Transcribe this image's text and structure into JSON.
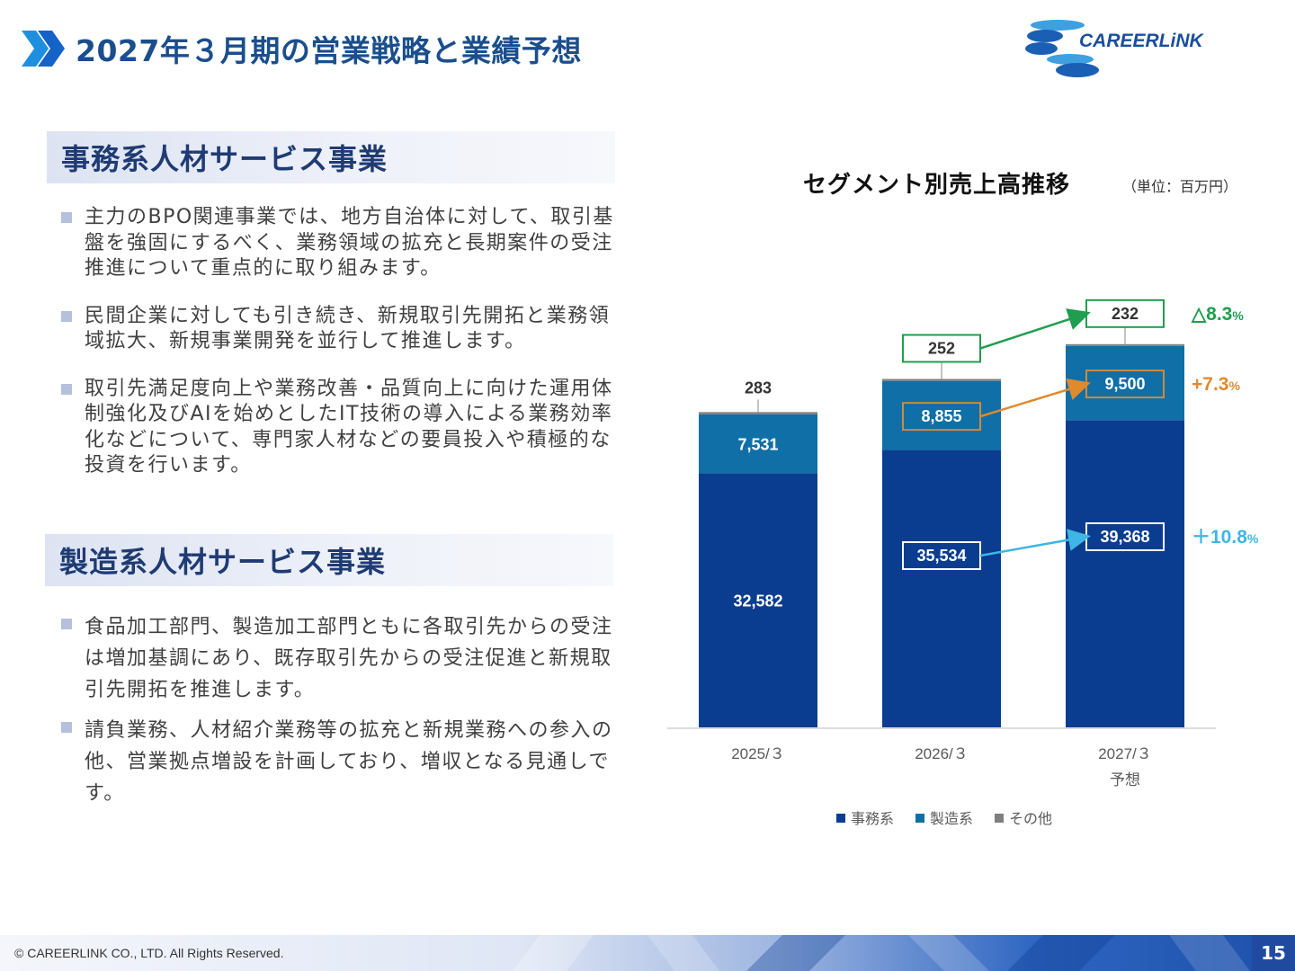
{
  "header": {
    "title": "2027年３月期の営業戦略と業績予想",
    "logo_text": "CAREERLiNK"
  },
  "section1": {
    "heading": "事務系人材サービス事業",
    "bullets": [
      "主力のBPO関連事業では、地方自治体に対して、取引基盤を強固にするべく、業務領域の拡充と長期案件の受注推進について重点的に取り組みます。",
      "民間企業に対しても引き続き、新規取引先開拓と業務領域拡大、新規事業開発を並行して推進します。",
      "取引先満足度向上や業務改善・品質向上に向けた運用体制強化及びAIを始めとしたIT技術の導入による業務効率化などについて、専門家人材などの要員投入や積極的な投資を行います。"
    ]
  },
  "section2": {
    "heading": "製造系人材サービス事業",
    "bullets": [
      "食品加工部門、製造加工部門ともに各取引先からの受注は増加基調にあり、既存取引先からの受注促進と新規取引先開拓を推進します。",
      "請負業務、人材紹介業務等の拡充と新規業務への参入の他、営業拠点増設を計画しており、増収となる見通しです。"
    ]
  },
  "chart_data": {
    "type": "bar",
    "stacked": true,
    "title": "セグメント別売上高推移",
    "unit": "（単位：百万円）",
    "categories": [
      "2025/３",
      "2026/３",
      "2027/３"
    ],
    "category_sublabels": [
      "",
      "",
      "予想"
    ],
    "series": [
      {
        "name": "事務系",
        "values": [
          32582,
          35534,
          39368
        ],
        "color": "#0a3d8f"
      },
      {
        "name": "製造系",
        "values": [
          7531,
          8855,
          9500
        ],
        "color": "#0f6fa6"
      },
      {
        "name": "その他",
        "values": [
          283,
          252,
          232
        ],
        "color": "#7f7f7f"
      }
    ],
    "labels": [
      [
        "32,582",
        "35,534",
        "39,368"
      ],
      [
        "7,531",
        "8,855",
        "9,500"
      ],
      [
        "283",
        "252",
        "232"
      ]
    ],
    "growth": [
      {
        "series": "その他",
        "text": "△8.3",
        "suffix": "%",
        "color": "#1e9e4e"
      },
      {
        "series": "製造系",
        "text": "+7.3",
        "suffix": "%",
        "color": "#e08a2e"
      },
      {
        "series": "事務系",
        "text": "＋10.8",
        "suffix": "%",
        "color": "#3fb6e4"
      }
    ],
    "legend_position": "bottom",
    "grid": false
  },
  "footer": {
    "copyright": "© CAREERLINK CO., LTD. All Rights Reserved.",
    "page": "15"
  }
}
